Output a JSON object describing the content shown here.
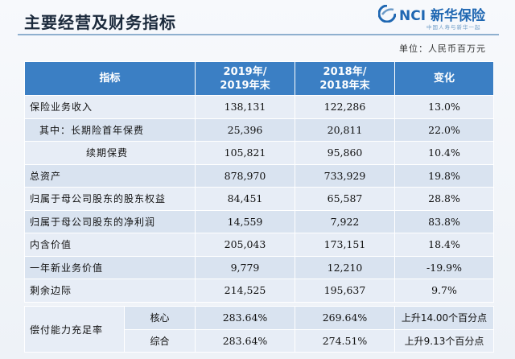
{
  "header": {
    "title": "主要经营及财务指标",
    "logo_text": "NCI 新华保险",
    "logo_sub": "中国人寿与新华一起",
    "unit": "单位：人民币百万元"
  },
  "table": {
    "columns": [
      "指标",
      "2019年/\n2019年末",
      "2018年/\n2018年末",
      "变化"
    ],
    "rows": [
      {
        "label": "保险业务收入",
        "v2019": "138,131",
        "v2018": "122,286",
        "change": "13.0%"
      },
      {
        "label": "其中：长期险首年保费",
        "v2019": "25,396",
        "v2018": "20,811",
        "change": "22.0%"
      },
      {
        "label": "续期保费",
        "v2019": "105,821",
        "v2018": "95,860",
        "change": "10.4%"
      },
      {
        "label": "总资产",
        "v2019": "878,970",
        "v2018": "733,929",
        "change": "19.8%"
      },
      {
        "label": "归属于母公司股东的股东权益",
        "v2019": "84,451",
        "v2018": "65,587",
        "change": "28.8%"
      },
      {
        "label": "归属于母公司股东的净利润",
        "v2019": "14,559",
        "v2018": "7,922",
        "change": "83.8%"
      },
      {
        "label": "内含价值",
        "v2019": "205,043",
        "v2018": "173,151",
        "change": "18.4%"
      },
      {
        "label": "一年新业务价值",
        "v2019": "9,779",
        "v2018": "12,210",
        "change": "-19.9%"
      },
      {
        "label": "剩余边际",
        "v2019": "214,525",
        "v2018": "195,637",
        "change": "9.7%"
      }
    ],
    "solvency": {
      "label": "偿付能力充足率",
      "rows": [
        {
          "sub": "核心",
          "v2019": "283.64%",
          "v2018": "269.64%",
          "change": "上升14.00个百分点"
        },
        {
          "sub": "综合",
          "v2019": "283.64%",
          "v2018": "274.51%",
          "change": "上升9.13个百分点"
        }
      ]
    }
  },
  "colors": {
    "header_bg": "#3b7fc4",
    "row_light": "#e7edf6",
    "row_dark": "#d9e3f0",
    "brand": "#1f67b2"
  }
}
